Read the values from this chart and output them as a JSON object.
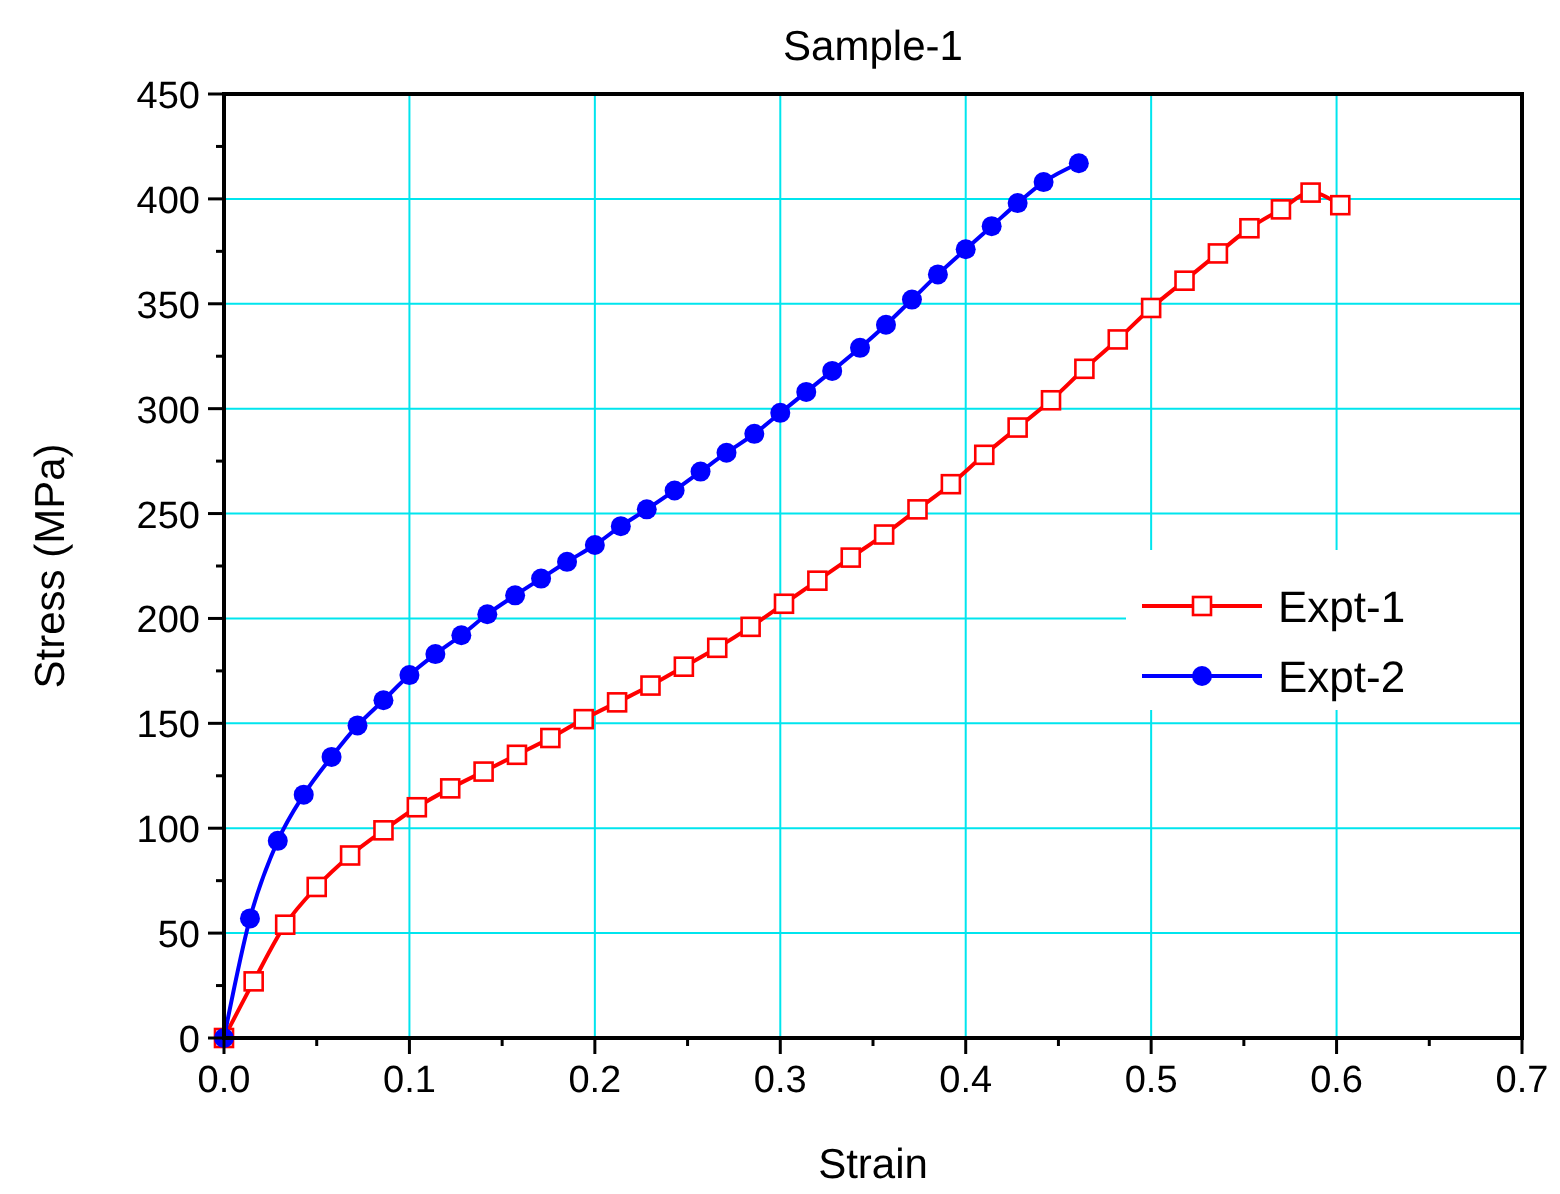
{
  "chart_data": {
    "type": "line",
    "title": "Sample-1",
    "xlabel": "Strain",
    "ylabel": "Stress (MPa)",
    "xlim": [
      0,
      0.7
    ],
    "xticks": [
      {
        "value": 0,
        "label": "0.0"
      },
      0.1,
      0.2,
      0.3,
      0.4,
      0.5,
      0.6,
      0.7
    ],
    "ylim": [
      0,
      450
    ],
    "yticks": [
      0,
      50,
      100,
      150,
      200,
      250,
      300,
      350,
      400,
      450
    ],
    "grid": true,
    "legend": "right",
    "series": [
      {
        "name": "Expt-1",
        "color": "#ff0000",
        "marker": "square",
        "x": [
          0,
          0.016,
          0.033,
          0.05,
          0.068,
          0.086,
          0.104,
          0.122,
          0.14,
          0.158,
          0.176,
          0.194,
          0.212,
          0.23,
          0.248,
          0.266,
          0.284,
          0.302,
          0.32,
          0.338,
          0.356,
          0.374,
          0.392,
          0.41,
          0.428,
          0.446,
          0.464,
          0.482,
          0.5,
          0.518,
          0.536,
          0.553,
          0.57,
          0.586,
          0.602
        ],
        "values": [
          0,
          27,
          54,
          72,
          87,
          99,
          110,
          119,
          127,
          135,
          143,
          152,
          160,
          168,
          177,
          186,
          196,
          207,
          218,
          229,
          240,
          252,
          264,
          278,
          291,
          304,
          319,
          333,
          348,
          361,
          374,
          386,
          395,
          403,
          397
        ]
      },
      {
        "name": "Expt-2",
        "color": "#0000ff",
        "marker": "circle",
        "x": [
          0,
          0.014,
          0.029,
          0.043,
          0.058,
          0.072,
          0.086,
          0.1,
          0.114,
          0.128,
          0.142,
          0.157,
          0.171,
          0.185,
          0.2,
          0.214,
          0.228,
          0.243,
          0.257,
          0.271,
          0.286,
          0.3,
          0.314,
          0.328,
          0.343,
          0.357,
          0.371,
          0.385,
          0.4,
          0.414,
          0.428,
          0.442,
          0.461
        ],
        "values": [
          0,
          57,
          94,
          116,
          134,
          149,
          161,
          173,
          183,
          192,
          202,
          211,
          219,
          227,
          235,
          244,
          252,
          261,
          270,
          279,
          288,
          298,
          308,
          318,
          329,
          340,
          352,
          364,
          376,
          387,
          398,
          408,
          417
        ]
      }
    ]
  }
}
